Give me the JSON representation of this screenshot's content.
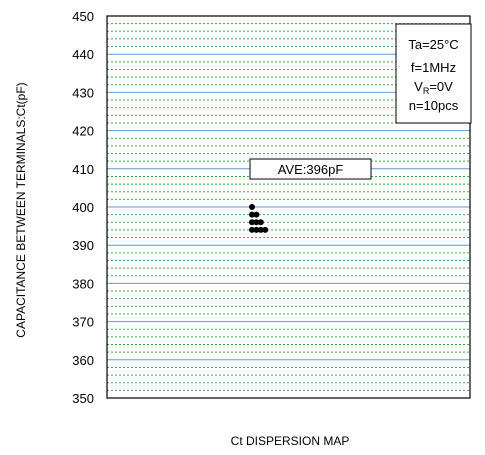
{
  "chart_data": {
    "type": "scatter",
    "title": "",
    "xlabel": "Ct DISPERSION MAP",
    "ylabel": "CAPACITANCE BETWEEN TERMINALS:Ct(pF)",
    "ylim": [
      350,
      450
    ],
    "yticks": [
      350,
      360,
      370,
      380,
      390,
      400,
      410,
      420,
      430,
      440,
      450
    ],
    "grid": true,
    "major_grid_color": "#5b9bd5",
    "minor_grid_color": "#3cb043",
    "marker_color": "#000000",
    "points_y": [
      400,
      398,
      398,
      396,
      396,
      396,
      394,
      394,
      394,
      394
    ],
    "average_label": "AVE:396pF",
    "conditions": {
      "ta": "Ta=25°C",
      "f": "f=1MHz",
      "vr_prefix": "V",
      "vr_sub": "R",
      "vr_suffix": "=0V",
      "n": "n=10pcs"
    }
  }
}
